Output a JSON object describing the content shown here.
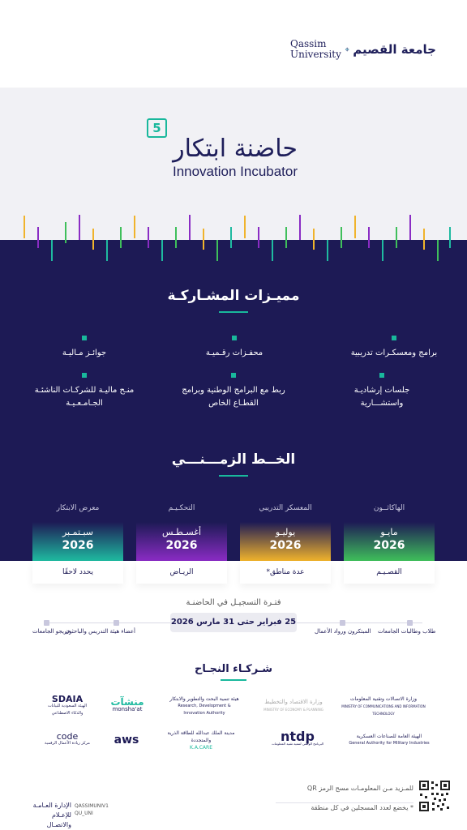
{
  "header": {
    "logo_en": "Qassim University",
    "logo_ar": "جامعة القصيم"
  },
  "title": {
    "number": "5",
    "arabic": "حاضنة ابتكار",
    "english": "Innovation Incubator"
  },
  "features": {
    "heading": "مميـزات المشـاركـة",
    "items": [
      "برامج ومعسكـرات تدريبية",
      "محفـزات رقـميـة",
      "جوائـز مـاليـة",
      "جلسات إرشاديـة واستشـــارية",
      "ربط مع البرامج الوطنية وبرامج القطـاع الخاص",
      "منـح ماليـة للشركـات الناشئـة الجـامـعـيـة"
    ]
  },
  "timeline": {
    "heading": "الخــط الزمـــنـــي",
    "phases": [
      {
        "label": "الهاكاثــون",
        "month": "مايـو",
        "year": "2026",
        "location": "القصـيـم"
      },
      {
        "label": "المعسكر التدريبي",
        "month": "يوليـو",
        "year": "2026",
        "location": "عدة مناطق*"
      },
      {
        "label": "التحكـيـم",
        "month": "أغسـطـس",
        "year": "2026",
        "location": "الريـاض"
      },
      {
        "label": "معرض الابتكار",
        "month": "سبـتمـبر",
        "year": "2026",
        "location": "يحدد لاحقًا"
      }
    ]
  },
  "registration": {
    "title": "فتـرة التسجيـل في الحاضنـة",
    "period": "25 فبراير حتى 31 مارس 2026",
    "audiences": [
      "طلاب وطالبات الجامعات",
      "المبتكرون ورواد الأعمال",
      "أعضاء هيئة التدريس والباحثون",
      "خريجو الجامعات"
    ]
  },
  "partners": {
    "heading": "شـركـاء النجـاح",
    "logos": [
      {
        "name": "SDAIA",
        "sub": "الهيئة السعودية للبيانات والذكاء الاصطناعي"
      },
      {
        "name": "منشآت",
        "sub": "monsha'at"
      },
      {
        "name": "هيئة تنمية البحث والتطوير والابتكار",
        "sub": "Research, Development & Innovation Authority"
      },
      {
        "name": "وزارة الاقتصاد والتخطيط",
        "sub": "MINISTRY OF ECONOMY & PLANNING"
      },
      {
        "name": "وزارة الاتصالات وتقنية المعلومات",
        "sub": "MINISTRY OF COMMUNICATIONS AND INFORMATION TECHNOLOGY"
      },
      {
        "name": "code",
        "sub": "مركز ريادة الأعمال الرقمية"
      },
      {
        "name": "aws",
        "sub": ""
      },
      {
        "name": "مدينة الملك عبدالله للطاقة الذرية والمتجددة",
        "sub": "K.A.CARE"
      },
      {
        "name": "ntdp",
        "sub": "البرنامج الوطني لتنمية تقنية المعلومات"
      },
      {
        "name": "الهيئة العامة للصناعات العسكرية",
        "sub": "General Authority for Military Industries"
      }
    ]
  },
  "footer": {
    "qr_note": "للمـزيد مـن المعلومـات مسح الرمز QR",
    "note": "* يخضع لعدد المسجلين في كل منطقة",
    "handle1": "QASSIMUNIV1",
    "handle2": "QU_UNI",
    "dept": "الإدارة العـامـة للإعـلام والاتصـال"
  },
  "colors": {
    "navy": "#1d1a55",
    "teal": "#19b89c",
    "light_band": "#f1f1f5",
    "card_may": "#3fbf5b",
    "card_july": "#f0b32c",
    "card_aug": "#8a2cc4",
    "card_sep": "#1fbaa0"
  }
}
